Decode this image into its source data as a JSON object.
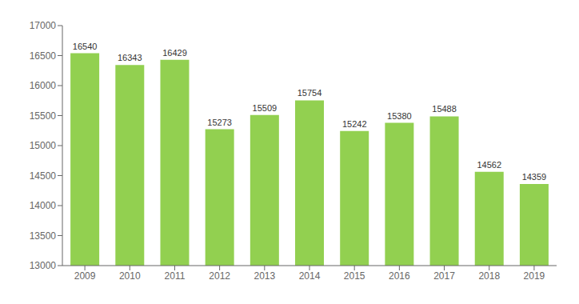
{
  "chart_data": {
    "type": "bar",
    "categories": [
      "2009",
      "2010",
      "2011",
      "2012",
      "2013",
      "2014",
      "2015",
      "2016",
      "2017",
      "2018",
      "2019"
    ],
    "values": [
      16540,
      16343,
      16429,
      15273,
      15509,
      15754,
      15242,
      15380,
      15488,
      14562,
      14359
    ],
    "color": "#92D050",
    "ylim": [
      13000,
      17000
    ],
    "yticks": [
      13000,
      13500,
      14000,
      14500,
      15000,
      15500,
      16000,
      16500,
      17000
    ],
    "grid": false,
    "data_labels": true
  }
}
